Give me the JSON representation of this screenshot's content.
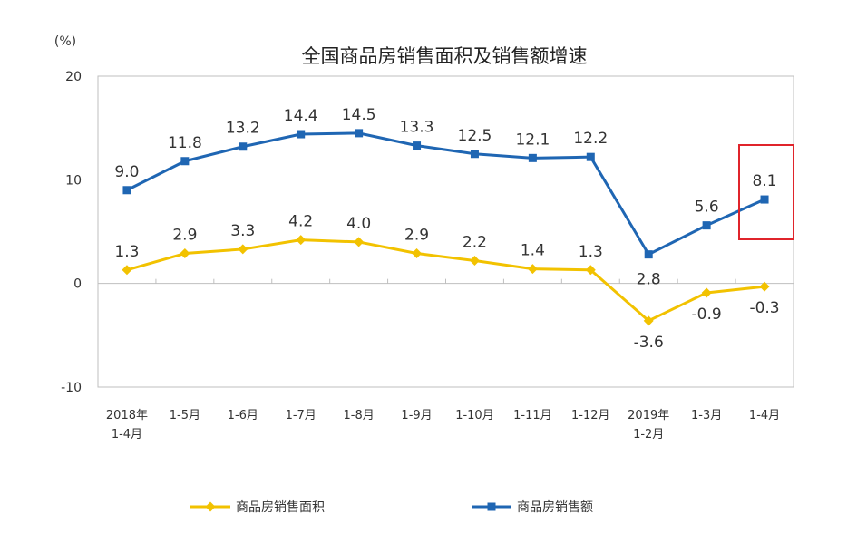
{
  "chart_data": {
    "type": "line",
    "title": "全国商品房销售面积及销售额增速",
    "unit_label": "(%)",
    "ylim": [
      -10,
      20
    ],
    "yticks": [
      20,
      10,
      0,
      -10
    ],
    "categories": [
      [
        "2018年",
        "1-4月"
      ],
      [
        "1-5月"
      ],
      [
        "1-6月"
      ],
      [
        "1-7月"
      ],
      [
        "1-8月"
      ],
      [
        "1-9月"
      ],
      [
        "1-10月"
      ],
      [
        "1-11月"
      ],
      [
        "1-12月"
      ],
      [
        "2019年",
        "1-2月"
      ],
      [
        "1-3月"
      ],
      [
        "1-4月"
      ]
    ],
    "series": [
      {
        "name": "商品房销售面积",
        "color": "#F2C200",
        "marker": "diamond",
        "values": [
          1.3,
          2.9,
          3.3,
          4.2,
          4.0,
          2.9,
          2.2,
          1.4,
          1.3,
          -3.6,
          -0.9,
          -0.3
        ],
        "labels": [
          "1.3",
          "2.9",
          "3.3",
          "4.2",
          "4.0",
          "2.9",
          "2.2",
          "1.4",
          "1.3",
          "-3.6",
          "-0.9",
          "-0.3"
        ]
      },
      {
        "name": "商品房销售额",
        "color": "#1F66B3",
        "marker": "square",
        "values": [
          9.0,
          11.8,
          13.2,
          14.4,
          14.5,
          13.3,
          12.5,
          12.1,
          12.2,
          2.8,
          5.6,
          8.1
        ],
        "labels": [
          "9.0",
          "11.8",
          "13.2",
          "14.4",
          "14.5",
          "13.3",
          "12.5",
          "12.1",
          "12.2",
          "2.8",
          "5.6",
          "8.1"
        ]
      }
    ],
    "highlight_color": "#E0242B"
  }
}
